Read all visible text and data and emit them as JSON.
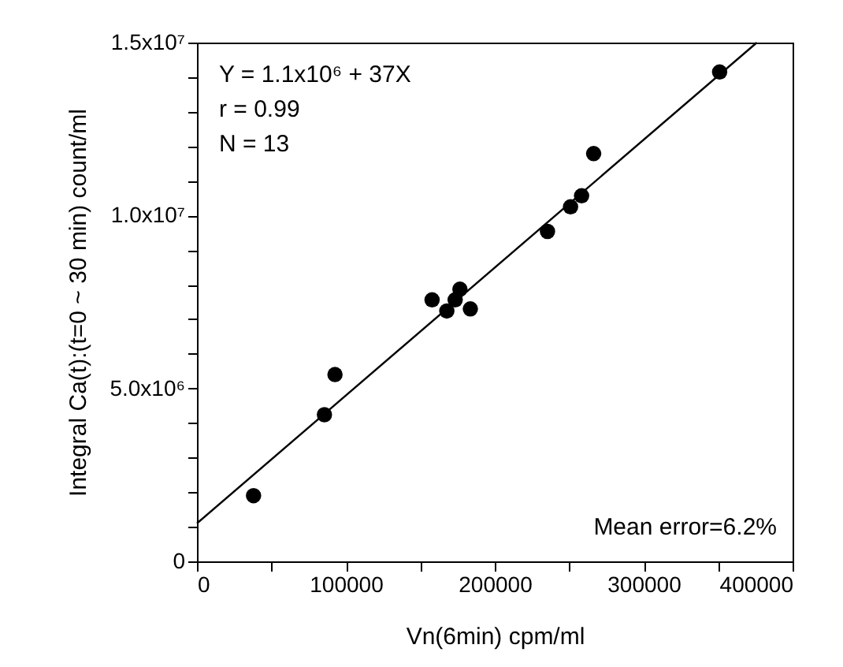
{
  "chart_data": {
    "type": "scatter",
    "xlabel": "Vn(6min) cpm/ml",
    "ylabel": "Integral Ca(t):(t=0 ~ 30 min) count/ml",
    "xlim": [
      0,
      400000
    ],
    "ylim": [
      0,
      15000000
    ],
    "xticks": [
      0,
      {
        "value": 50000,
        "label": null
      },
      100000,
      {
        "value": 150000,
        "label": null
      },
      200000,
      {
        "value": 250000,
        "label": null
      },
      300000,
      {
        "value": 350000,
        "label": null
      },
      400000
    ],
    "yticks": [
      {
        "value": 0,
        "label": "0"
      },
      {
        "value": 1000000,
        "label": null
      },
      {
        "value": 2000000,
        "label": null
      },
      {
        "value": 3000000,
        "label": null
      },
      {
        "value": 4000000,
        "label": null
      },
      {
        "value": 5000000,
        "label": "5.0x10⁶"
      },
      {
        "value": 6000000,
        "label": null
      },
      {
        "value": 7000000,
        "label": null
      },
      {
        "value": 8000000,
        "label": null
      },
      {
        "value": 9000000,
        "label": null
      },
      {
        "value": 10000000,
        "label": "1.0x10⁷"
      },
      {
        "value": 11000000,
        "label": null
      },
      {
        "value": 12000000,
        "label": null
      },
      {
        "value": 13000000,
        "label": null
      },
      {
        "value": 14000000,
        "label": null
      },
      {
        "value": 15000000,
        "label": "1.5x10⁷"
      }
    ],
    "marker": "circle",
    "annotations": [
      "Y = 1.1x10⁶ + 37X",
      "r = 0.99",
      "N = 13",
      "Mean error=6.2%"
    ],
    "series": [
      {
        "color": "#000000",
        "x": [
          38000,
          85600,
          92700,
          157900,
          167800,
          173400,
          176600,
          183600,
          235400,
          250900,
          258300,
          266400,
          351000
        ],
        "values": [
          1900000,
          4240000,
          5400000,
          7560000,
          7240000,
          7560000,
          7870000,
          7300000,
          9540000,
          10250000,
          10570000,
          11790000,
          14150000
        ]
      },
      {
        "type": "line",
        "marker": "none",
        "color": "#000000",
        "x": [
          0,
          376000
        ],
        "values": [
          1100000,
          15000000
        ]
      }
    ]
  }
}
